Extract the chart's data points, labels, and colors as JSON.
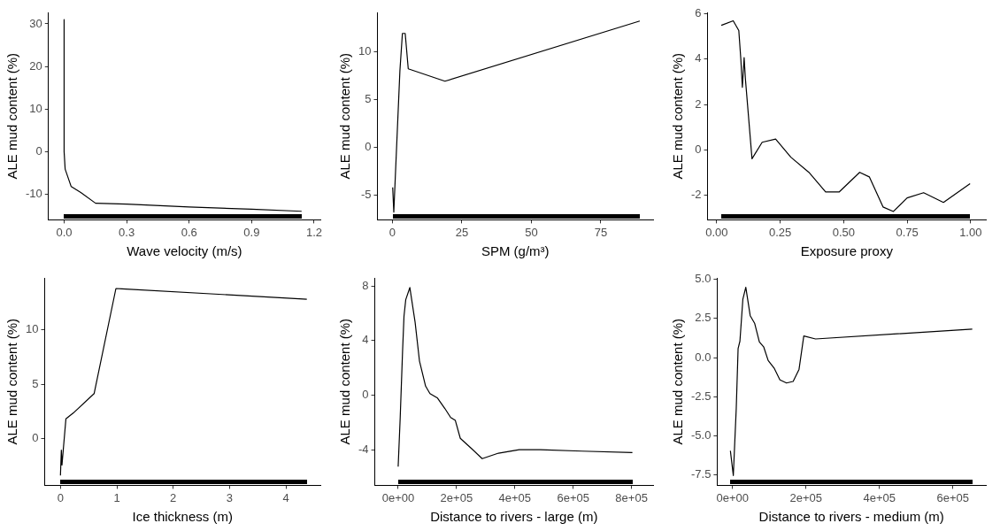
{
  "chart_data": [
    {
      "type": "line",
      "xlabel": "Wave velocity (m/s)",
      "ylabel": "ALE mud content (%)",
      "xlim": [
        -0.075,
        1.23
      ],
      "ylim": [
        -16,
        32.7
      ],
      "xticks": [
        {
          "value": 0,
          "label": "0.0"
        },
        {
          "value": 0.3,
          "label": "0.3"
        },
        {
          "value": 0.6,
          "label": "0.6"
        },
        {
          "value": 0.9,
          "label": "0.9"
        },
        {
          "value": 1.2,
          "label": "1.2"
        }
      ],
      "yticks": [
        -10,
        0,
        10,
        20,
        30
      ],
      "color": "#000000",
      "x": [
        0,
        0,
        0.005,
        0.034,
        0.08,
        0.151,
        0.3,
        0.6,
        0.9,
        1.14
      ],
      "values": [
        31,
        0,
        -4.1,
        -8.2,
        -9.6,
        -12.1,
        -12.3,
        -13,
        -13.5,
        -14
      ]
    },
    {
      "type": "line",
      "xlabel": "SPM (g/m³)",
      "ylabel": "ALE mud content (%)",
      "xlim": [
        -5.4,
        93.8
      ],
      "ylim": [
        -7.6,
        14.1
      ],
      "xticks": [
        0,
        25,
        50,
        75
      ],
      "yticks": [
        -5,
        0,
        5,
        10
      ],
      "color": "#000000",
      "x": [
        0.1,
        0.5,
        2.7,
        3.6,
        4.6,
        5.7,
        18.9,
        89
      ],
      "values": [
        -4.2,
        -6.8,
        8,
        11.9,
        11.9,
        8.2,
        6.9,
        13.2
      ]
    },
    {
      "type": "line",
      "xlabel": "Exposure proxy",
      "ylabel": "ALE mud content (%)",
      "xlim": [
        -0.036,
        1.06
      ],
      "ylim": [
        -3.1,
        6.07
      ],
      "xticks": [
        {
          "value": 0,
          "label": "0.00"
        },
        {
          "value": 0.25,
          "label": "0.25"
        },
        {
          "value": 0.5,
          "label": "0.50"
        },
        {
          "value": 0.75,
          "label": "0.75"
        },
        {
          "value": 1,
          "label": "1.00"
        }
      ],
      "yticks": [
        -2,
        0,
        2,
        4,
        6
      ],
      "color": "#000000",
      "x": [
        0.018,
        0.065,
        0.087,
        0.095,
        0.101,
        0.108,
        0.113,
        0.139,
        0.179,
        0.232,
        0.292,
        0.363,
        0.429,
        0.482,
        0.563,
        0.601,
        0.655,
        0.696,
        0.75,
        0.815,
        0.893,
        0.998
      ],
      "values": [
        5.5,
        5.7,
        5.27,
        4.0,
        2.76,
        4.07,
        3.13,
        -0.4,
        0.33,
        0.47,
        -0.33,
        -1.0,
        -1.87,
        -1.87,
        -1.0,
        -1.2,
        -2.53,
        -2.73,
        -2.13,
        -1.9,
        -2.33,
        -1.5
      ]
    },
    {
      "type": "line",
      "xlabel": "Ice thickness (m)",
      "ylabel": "ALE mud content (%)",
      "xlim": [
        -0.28,
        4.61
      ],
      "ylim": [
        -4.34,
        14.8
      ],
      "xticks": [
        0,
        1,
        2,
        3,
        4
      ],
      "yticks": [
        0,
        5,
        10
      ],
      "color": "#000000",
      "x": [
        0,
        0.016,
        0.027,
        0.097,
        0.23,
        0.597,
        0.984,
        1.09,
        4.37
      ],
      "values": [
        -3.43,
        -1.1,
        -2.47,
        1.79,
        2.34,
        4.12,
        13.82,
        13.79,
        12.83
      ]
    },
    {
      "type": "line",
      "xlabel": "Distance to rivers - large (m)",
      "ylabel": "ALE mud content (%)",
      "xlim": [
        -80000,
        874000
      ],
      "ylim": [
        -6.62,
        8.6
      ],
      "xticks": [
        {
          "value": 0,
          "label": "0e+00"
        },
        {
          "value": 200000,
          "label": "2e+05"
        },
        {
          "value": 400000,
          "label": "4e+05"
        },
        {
          "value": 600000,
          "label": "6e+05"
        },
        {
          "value": 800000,
          "label": "8e+05"
        }
      ],
      "yticks": [
        -4,
        0,
        4,
        8
      ],
      "color": "#000000",
      "x": [
        0,
        7000,
        15000,
        20000,
        26000,
        40000,
        58000,
        73000,
        94000,
        109000,
        135000,
        160000,
        180000,
        196000,
        213000,
        252000,
        288000,
        344000,
        415000,
        487000,
        630000,
        803000
      ],
      "values": [
        -5.25,
        -1.64,
        3.17,
        5.79,
        7.0,
        7.89,
        5.36,
        2.51,
        0.66,
        0.11,
        -0.22,
        -0.98,
        -1.64,
        -1.86,
        -3.17,
        -3.93,
        -4.66,
        -4.26,
        -4.0,
        -4.0,
        -4.11,
        -4.22
      ]
    },
    {
      "type": "line",
      "xlabel": "Distance to rivers - medium (m)",
      "ylabel": "ALE mud content (%)",
      "xlim": [
        -42000,
        690000
      ],
      "ylim": [
        -8.18,
        5.1
      ],
      "xticks": [
        {
          "value": 0,
          "label": "0e+00"
        },
        {
          "value": 200000,
          "label": "2e+05"
        },
        {
          "value": 400000,
          "label": "4e+05"
        },
        {
          "value": 600000,
          "label": "6e+05"
        }
      ],
      "yticks": [
        {
          "value": -7.5,
          "label": "-7.5"
        },
        {
          "value": -5,
          "label": "-5.0"
        },
        {
          "value": -2.5,
          "label": "-2.5"
        },
        {
          "value": 0,
          "label": "0.0"
        },
        {
          "value": 2.5,
          "label": "2.5"
        },
        {
          "value": 5,
          "label": "5.0"
        }
      ],
      "color": "#000000",
      "x": [
        -6000,
        2000,
        10000,
        15000,
        20000,
        28000,
        36000,
        48000,
        60000,
        73000,
        85000,
        97000,
        113000,
        129000,
        147000,
        165000,
        181000,
        194000,
        226000,
        653000
      ],
      "values": [
        -5.97,
        -7.55,
        -3.25,
        0.57,
        1.05,
        3.73,
        4.5,
        2.68,
        2.2,
        1.0,
        0.67,
        -0.19,
        -0.67,
        -1.43,
        -1.63,
        -1.53,
        -0.76,
        1.38,
        1.19,
        1.82
      ]
    }
  ]
}
